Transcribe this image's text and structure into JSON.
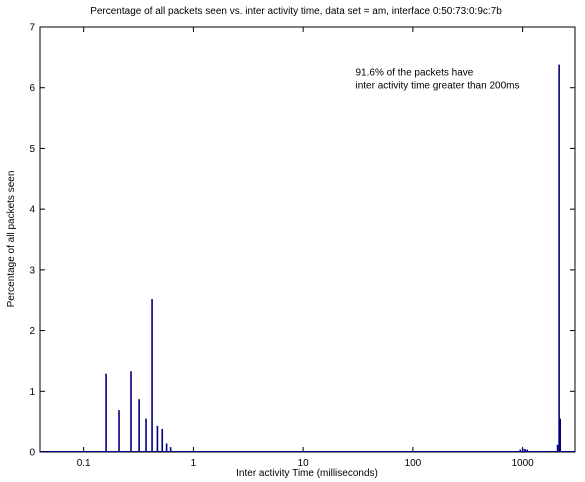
{
  "chart_data": {
    "type": "line",
    "title": "Percentage of all packets seen vs. inter activity time, data set = am, interface 0:50:73:0:9c:7b",
    "xlabel": "Inter activity Time (milliseconds)",
    "ylabel": "Percentage of all packets seen",
    "xscale": "log",
    "xlim": [
      0.04,
      3000
    ],
    "ylim": [
      0,
      7
    ],
    "grid": false,
    "x_ticks": [
      {
        "value": 0.1,
        "label": "0.1"
      },
      {
        "value": 1,
        "label": "1"
      },
      {
        "value": 10,
        "label": "10"
      },
      {
        "value": 100,
        "label": "100"
      },
      {
        "value": 1000,
        "label": "1000"
      }
    ],
    "y_ticks": [
      {
        "value": 0,
        "label": "0"
      },
      {
        "value": 1,
        "label": "1"
      },
      {
        "value": 2,
        "label": "2"
      },
      {
        "value": 3,
        "label": "3"
      },
      {
        "value": 4,
        "label": "4"
      },
      {
        "value": 5,
        "label": "5"
      },
      {
        "value": 6,
        "label": "6"
      },
      {
        "value": 7,
        "label": "7"
      }
    ],
    "annotation": {
      "lines": [
        "91.6% of the packets have",
        "inter activity time greater than 200ms"
      ],
      "x": 30,
      "y": 6.2
    },
    "series_color": "#000080",
    "spikes": [
      {
        "x": 0.16,
        "y": 1.29
      },
      {
        "x": 0.21,
        "y": 0.69
      },
      {
        "x": 0.27,
        "y": 1.33
      },
      {
        "x": 0.32,
        "y": 0.87
      },
      {
        "x": 0.37,
        "y": 0.55
      },
      {
        "x": 0.42,
        "y": 2.52
      },
      {
        "x": 0.47,
        "y": 0.43
      },
      {
        "x": 0.52,
        "y": 0.38
      },
      {
        "x": 0.57,
        "y": 0.14
      },
      {
        "x": 0.62,
        "y": 0.08
      },
      {
        "x": 950,
        "y": 0.04
      },
      {
        "x": 1000,
        "y": 0.06
      },
      {
        "x": 1050,
        "y": 0.05
      },
      {
        "x": 1100,
        "y": 0.04
      },
      {
        "x": 2080,
        "y": 0.12
      },
      {
        "x": 2150,
        "y": 6.38
      },
      {
        "x": 2200,
        "y": 0.55
      }
    ]
  }
}
